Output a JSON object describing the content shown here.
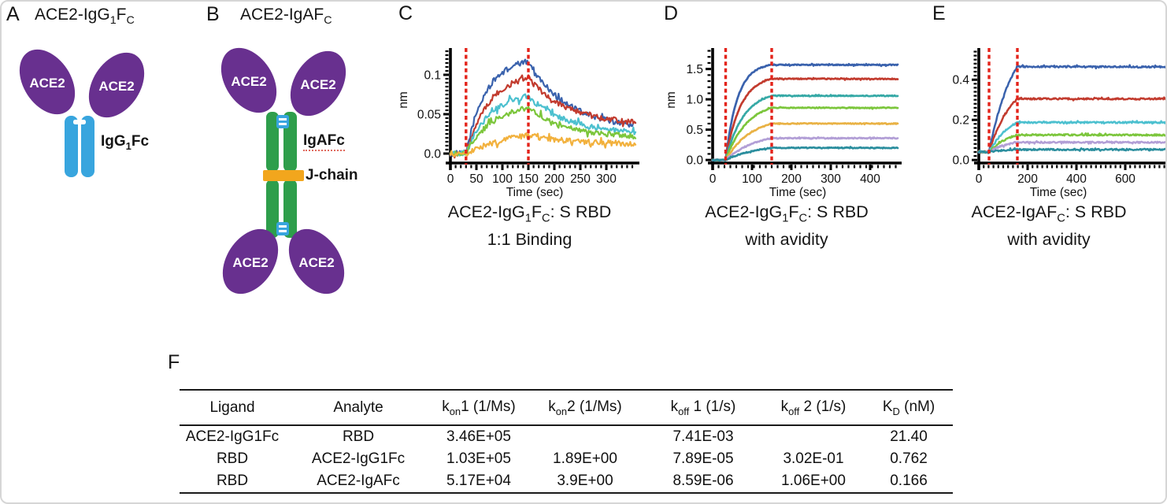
{
  "figure": {
    "background": "#ffffff",
    "accent_red": "#e3231a",
    "purple": "#68308f",
    "blue": "#38a5de",
    "green": "#2e9e4b",
    "orange": "#f2a61d"
  },
  "panel_a": {
    "letter": "A",
    "title": "ACE2-IgG~1~F~C~",
    "oval_label": "ACE2",
    "stem_label": "IgG~1~Fc"
  },
  "panel_b": {
    "letter": "B",
    "title": "ACE2-IgAF~C~",
    "oval_label": "ACE2",
    "stem_label": "IgAFc",
    "jchain_label": "J-chain"
  },
  "panel_c": {
    "letter": "C",
    "caption_line1": "ACE2-IgG~1~F~C~: S RBD",
    "caption_line2": "1:1 Binding"
  },
  "panel_d": {
    "letter": "D",
    "caption_line1": "ACE2-IgG~1~F~C~: S RBD",
    "caption_line2": "with avidity"
  },
  "panel_e": {
    "letter": "E",
    "caption_line1": "ACE2-IgAF~C~: S RBD",
    "caption_line2": "with avidity"
  },
  "chart_data": [
    {
      "panel": "C",
      "type": "line",
      "title": "ACE2-IgG1FC: S RBD 1:1 Binding",
      "xlabel": "Time (sec)",
      "ylabel": "nm",
      "xlim": [
        0,
        356
      ],
      "ylim": [
        -0.012,
        0.132
      ],
      "x_ticks": [
        0,
        50,
        100,
        150,
        200,
        250,
        300
      ],
      "y_ticks": [
        {
          "v": 0,
          "label": "0.0"
        },
        {
          "v": 0.05,
          "label": "0.05"
        },
        {
          "v": 0.1,
          "label": "0.1"
        }
      ],
      "grid": false,
      "legend": "none",
      "phase_lines": [
        30,
        150
      ],
      "phase_line_color": "#e3231a",
      "baseline": 0,
      "noise": 0.0035,
      "tau_dissoc": 75,
      "series": [
        {
          "name": "blue",
          "color": "#3a62ad",
          "peak": 0.117,
          "end": 0.031,
          "tau": 38
        },
        {
          "name": "red",
          "color": "#c23b2e",
          "peak": 0.096,
          "end": 0.036,
          "tau": 44
        },
        {
          "name": "cyan",
          "color": "#4cc0cf",
          "peak": 0.073,
          "end": 0.024,
          "tau": 46
        },
        {
          "name": "green",
          "color": "#7cc63c",
          "peak": 0.058,
          "end": 0.02,
          "tau": 52
        },
        {
          "name": "orange",
          "color": "#f2b13d",
          "peak": 0.023,
          "end": 0.012,
          "tau": 95
        }
      ]
    },
    {
      "panel": "D",
      "type": "line",
      "title": "ACE2-IgG1FC: S RBD with avidity",
      "xlabel": "Time (sec)",
      "ylabel": "nm",
      "xlim": [
        0,
        470
      ],
      "ylim": [
        -0.05,
        1.82
      ],
      "x_ticks": [
        0,
        100,
        200,
        300,
        400
      ],
      "y_ticks": [
        {
          "v": 0,
          "label": "0.0"
        },
        {
          "v": 0.5,
          "label": "0.5"
        },
        {
          "v": 1.0,
          "label": "1.0"
        },
        {
          "v": 1.5,
          "label": "1.5"
        }
      ],
      "grid": false,
      "legend": "none",
      "phase_lines": [
        33,
        150
      ],
      "phase_line_color": "#e3231a",
      "baseline": 0,
      "noise": 0.008,
      "tau_dissoc": 4000,
      "series": [
        {
          "name": "blue",
          "color": "#3a62ad",
          "peak": 1.57,
          "end": 1.53,
          "tau": 30
        },
        {
          "name": "red",
          "color": "#c23b2e",
          "peak": 1.34,
          "end": 1.3,
          "tau": 38
        },
        {
          "name": "teal",
          "color": "#36a9a6",
          "peak": 1.06,
          "end": 1.04,
          "tau": 46
        },
        {
          "name": "green",
          "color": "#7cc63c",
          "peak": 0.86,
          "end": 0.85,
          "tau": 55
        },
        {
          "name": "orange",
          "color": "#e9b245",
          "peak": 0.6,
          "end": 0.6,
          "tau": 65
        },
        {
          "name": "lavender",
          "color": "#b29fd6",
          "peak": 0.36,
          "end": 0.36,
          "tau": 75
        },
        {
          "name": "dark-teal",
          "color": "#2b8e9e",
          "peak": 0.2,
          "end": 0.2,
          "tau": 85
        }
      ]
    },
    {
      "panel": "E",
      "type": "line",
      "title": "ACE2-IgAFC: S RBD with avidity",
      "xlabel": "Time (sec)",
      "ylabel": "",
      "xlim": [
        0,
        770
      ],
      "ylim": [
        -0.015,
        0.55
      ],
      "x_ticks": [
        0,
        200,
        400,
        600
      ],
      "y_ticks": [
        {
          "v": 0,
          "label": "0.0"
        },
        {
          "v": 0.2,
          "label": "0.2"
        },
        {
          "v": 0.4,
          "label": "0.4"
        }
      ],
      "grid": false,
      "legend": "none",
      "phase_lines": [
        42,
        158
      ],
      "phase_line_color": "#e3231a",
      "baseline": 0.04,
      "noise": 0.0038,
      "tau_dissoc": 6000,
      "series": [
        {
          "name": "blue",
          "color": "#3a62ad",
          "peak": 0.465,
          "end": 0.455,
          "tau": 100
        },
        {
          "name": "red",
          "color": "#c23b2e",
          "peak": 0.305,
          "end": 0.3,
          "tau": 95
        },
        {
          "name": "cyan",
          "color": "#4cc0cf",
          "peak": 0.187,
          "end": 0.186,
          "tau": 90
        },
        {
          "name": "green",
          "color": "#7cc63c",
          "peak": 0.125,
          "end": 0.122,
          "tau": 85
        },
        {
          "name": "lavender",
          "color": "#b29fd6",
          "peak": 0.088,
          "end": 0.09,
          "tau": 80
        },
        {
          "name": "teal",
          "color": "#2b8e9e",
          "peak": 0.052,
          "end": 0.056,
          "tau": 80
        }
      ]
    }
  ],
  "table": {
    "letter": "F",
    "headers": [
      "Ligand",
      "Analyte",
      "k~on~1 (1/Ms)",
      "k~on~2 (1/Ms)",
      "k~off~ 1 (1/s)",
      "k~off~ 2 (1/s)",
      "K~D~ (nM)"
    ],
    "rows": [
      [
        "ACE2-IgG1Fc",
        "RBD",
        "3.46E+05",
        "",
        "7.41E-03",
        "",
        "21.40"
      ],
      [
        "RBD",
        "ACE2-IgG1Fc",
        "1.03E+05",
        "1.89E+00",
        "7.89E-05",
        "3.02E-01",
        "0.762"
      ],
      [
        "RBD",
        "ACE2-IgAFc",
        "5.17E+04",
        "3.9E+00",
        "8.59E-06",
        "1.06E+00",
        "0.166"
      ]
    ]
  }
}
